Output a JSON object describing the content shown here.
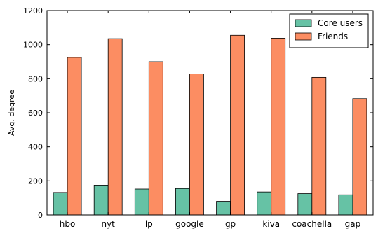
{
  "chart_data": {
    "type": "bar",
    "title": "",
    "xlabel": "",
    "ylabel": "Avg. degree",
    "categories": [
      "hbo",
      "nyt",
      "lp",
      "google",
      "gp",
      "kiva",
      "coachella",
      "gap"
    ],
    "series": [
      {
        "name": "Core users",
        "values": [
          132,
          175,
          152,
          155,
          80,
          135,
          125,
          118
        ],
        "color": "#66c2a5"
      },
      {
        "name": "Friends",
        "values": [
          925,
          1035,
          900,
          828,
          1055,
          1038,
          808,
          683
        ],
        "color": "#fc8d62"
      }
    ],
    "ylim": [
      0,
      1200
    ],
    "yticks": [
      0,
      200,
      400,
      600,
      800,
      1000,
      1200
    ],
    "grid": false,
    "legend_position": "top-right"
  }
}
